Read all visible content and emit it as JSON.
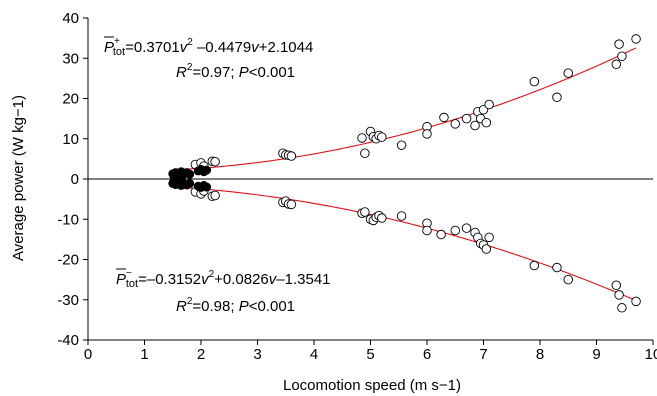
{
  "chart_data": {
    "type": "scatter",
    "xlabel": "Locomotion speed (m s−1)",
    "ylabel": "Average power (W kg−1)",
    "xlim": [
      0,
      10
    ],
    "ylim": [
      -40,
      40
    ],
    "x_ticks": [
      0,
      1,
      2,
      3,
      4,
      5,
      6,
      7,
      8,
      9,
      10
    ],
    "y_ticks": [
      -40,
      -30,
      -20,
      -10,
      0,
      10,
      20,
      30,
      40
    ],
    "zero_line": true,
    "grid": false,
    "equations": {
      "positive": {
        "lhs_main": "P",
        "lhs_sub": "tot",
        "lhs_sup": "+",
        "rhs": "=0.3701v2 –0.4479v+2.1044",
        "rhs_parts": [
          "=0.3701",
          "v",
          "2",
          " –0.4479",
          "v",
          "+2.1044"
        ],
        "stats": "R2=0.97; P<0.001",
        "stats_parts": [
          "R",
          "2",
          "=0.97; ",
          "P",
          "<0.001"
        ],
        "coefficients": [
          0.3701,
          -0.4479,
          2.1044
        ]
      },
      "negative": {
        "lhs_main": "P",
        "lhs_sub": "tot",
        "lhs_sup": "−",
        "rhs": "=–0.3152v2+0.0826v–1.3541",
        "rhs_parts": [
          "=–0.3152",
          "v",
          "2",
          "+0.0826",
          "v",
          "–1.3541"
        ],
        "stats": "R2=0.98; P<0.001",
        "stats_parts": [
          "R",
          "2",
          "=0.98; ",
          "P",
          "<0.001"
        ],
        "coefficients": [
          -0.3152,
          0.0826,
          -1.3541
        ]
      }
    },
    "series": [
      {
        "marker": "open-circle",
        "points_positive": [
          [
            1.9,
            3.6
          ],
          [
            2.0,
            4.0
          ],
          [
            2.05,
            3.2
          ],
          [
            2.2,
            4.4
          ],
          [
            2.25,
            4.3
          ],
          [
            3.45,
            6.4
          ],
          [
            3.5,
            6.0
          ],
          [
            3.55,
            5.9
          ],
          [
            3.6,
            5.7
          ],
          [
            4.85,
            10.2
          ],
          [
            4.9,
            6.4
          ],
          [
            5.0,
            11.8
          ],
          [
            5.05,
            10.5
          ],
          [
            5.1,
            10.0
          ],
          [
            5.15,
            10.8
          ],
          [
            5.2,
            10.4
          ],
          [
            5.55,
            8.4
          ],
          [
            6.0,
            13.0
          ],
          [
            6.0,
            11.2
          ],
          [
            6.3,
            15.3
          ],
          [
            6.5,
            13.7
          ],
          [
            6.7,
            15.0
          ],
          [
            6.85,
            13.3
          ],
          [
            6.9,
            16.7
          ],
          [
            6.95,
            15.0
          ],
          [
            7.0,
            17.2
          ],
          [
            7.05,
            14.0
          ],
          [
            7.1,
            18.5
          ],
          [
            7.9,
            24.2
          ],
          [
            8.3,
            20.3
          ],
          [
            8.5,
            26.3
          ],
          [
            9.35,
            28.5
          ],
          [
            9.4,
            33.5
          ],
          [
            9.45,
            30.5
          ],
          [
            9.7,
            34.8
          ]
        ],
        "points_negative": [
          [
            1.9,
            -3.2
          ],
          [
            2.0,
            -3.7
          ],
          [
            2.05,
            -3.0
          ],
          [
            2.2,
            -4.3
          ],
          [
            2.25,
            -4.1
          ],
          [
            3.45,
            -5.8
          ],
          [
            3.5,
            -5.5
          ],
          [
            3.55,
            -6.2
          ],
          [
            3.6,
            -6.3
          ],
          [
            4.85,
            -8.5
          ],
          [
            4.9,
            -8.2
          ],
          [
            5.0,
            -10.0
          ],
          [
            5.05,
            -10.3
          ],
          [
            5.1,
            -9.5
          ],
          [
            5.15,
            -9.1
          ],
          [
            5.2,
            -9.7
          ],
          [
            5.55,
            -9.2
          ],
          [
            6.0,
            -11.0
          ],
          [
            6.0,
            -12.8
          ],
          [
            6.25,
            -13.8
          ],
          [
            6.5,
            -12.8
          ],
          [
            6.7,
            -12.2
          ],
          [
            6.85,
            -13.3
          ],
          [
            6.9,
            -14.5
          ],
          [
            6.95,
            -16.0
          ],
          [
            7.0,
            -16.4
          ],
          [
            7.05,
            -17.4
          ],
          [
            7.1,
            -14.5
          ],
          [
            7.9,
            -21.5
          ],
          [
            8.3,
            -22.0
          ],
          [
            8.5,
            -25.0
          ],
          [
            9.35,
            -26.4
          ],
          [
            9.4,
            -28.8
          ],
          [
            9.45,
            -32.0
          ],
          [
            9.7,
            -30.4
          ]
        ]
      },
      {
        "marker": "filled-circle",
        "points_positive": [
          [
            1.5,
            1.3
          ],
          [
            1.52,
            0.7
          ],
          [
            1.55,
            1.6
          ],
          [
            1.58,
            0.9
          ],
          [
            1.6,
            1.2
          ],
          [
            1.62,
            0.5
          ],
          [
            1.65,
            1.8
          ],
          [
            1.68,
            1.0
          ],
          [
            1.7,
            1.4
          ],
          [
            1.75,
            1.6
          ],
          [
            1.8,
            1.2
          ],
          [
            1.95,
            2.0
          ],
          [
            2.0,
            2.4
          ],
          [
            2.05,
            1.8
          ],
          [
            2.1,
            2.2
          ]
        ],
        "points_negative": [
          [
            1.5,
            -1.1
          ],
          [
            1.52,
            -0.6
          ],
          [
            1.55,
            -1.4
          ],
          [
            1.58,
            -0.8
          ],
          [
            1.6,
            -1.2
          ],
          [
            1.62,
            -0.4
          ],
          [
            1.65,
            -1.6
          ],
          [
            1.68,
            -1.0
          ],
          [
            1.7,
            -1.3
          ],
          [
            1.75,
            -1.5
          ],
          [
            1.8,
            -1.1
          ],
          [
            1.95,
            -1.8
          ],
          [
            2.0,
            -2.1
          ],
          [
            2.05,
            -1.6
          ],
          [
            2.1,
            -2.0
          ]
        ]
      }
    ]
  }
}
